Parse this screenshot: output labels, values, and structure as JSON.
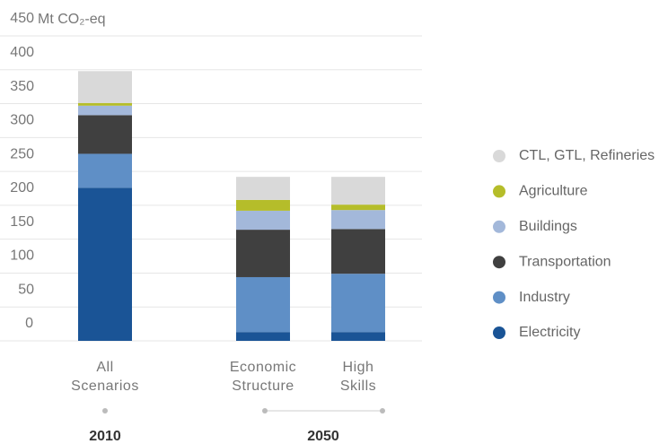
{
  "chart_data": {
    "type": "stacked_bar",
    "y_label": "Mt CO₂-eq",
    "categories": [
      [
        "All",
        "Scenarios"
      ],
      [
        "Economic",
        "Structure"
      ],
      [
        "High",
        "Skills"
      ]
    ],
    "groups": [
      "2010",
      "2050"
    ],
    "ylim": [
      0,
      450
    ],
    "yticks": [
      0,
      50,
      100,
      150,
      200,
      250,
      300,
      350,
      400,
      450
    ],
    "grid": true,
    "series": [
      {
        "name": "Electricity",
        "color": "#1a5496",
        "values": [
          226,
          13,
          13
        ]
      },
      {
        "name": "Industry",
        "color": "#5f8fc6",
        "values": [
          50,
          81,
          86
        ]
      },
      {
        "name": "Transportation",
        "color": "#404040",
        "values": [
          57,
          70,
          66
        ]
      },
      {
        "name": "Buildings",
        "color": "#a3b8da",
        "values": [
          14,
          28,
          28
        ]
      },
      {
        "name": "Agriculture",
        "color": "#b5bd2a",
        "values": [
          4,
          16,
          8
        ]
      },
      {
        "name": "CTL, GTL, Refineries",
        "color": "#d9d9d9",
        "values": [
          47,
          34,
          41
        ]
      }
    ]
  }
}
